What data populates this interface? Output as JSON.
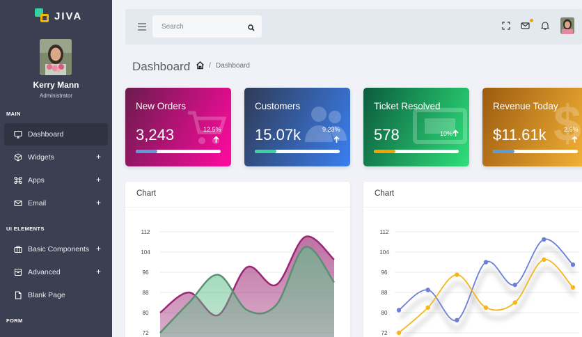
{
  "brand": {
    "name": "JIVA"
  },
  "profile": {
    "name": "Kerry Mann",
    "role": "Administrator"
  },
  "sidebar": {
    "sections": [
      {
        "title": "MAIN"
      },
      {
        "title": "UI ELEMENTS"
      },
      {
        "title": "FORM"
      }
    ],
    "items": [
      {
        "label": "Dashboard",
        "icon": "monitor-icon",
        "active": true
      },
      {
        "label": "Widgets",
        "icon": "cube-icon",
        "expandable": true
      },
      {
        "label": "Apps",
        "icon": "command-icon",
        "expandable": true
      },
      {
        "label": "Email",
        "icon": "mail-icon",
        "expandable": true
      },
      {
        "label": "Basic Components",
        "icon": "briefcase-icon",
        "expandable": true
      },
      {
        "label": "Advanced",
        "icon": "archive-icon",
        "expandable": true
      },
      {
        "label": "Blank Page",
        "icon": "file-icon"
      }
    ],
    "expand_symbol": "+"
  },
  "topbar": {
    "search_placeholder": "Search",
    "icons": [
      "menu-icon",
      "search-icon",
      "fullscreen-icon",
      "mail-icon",
      "bell-icon",
      "user-avatar"
    ]
  },
  "breadcrumb": {
    "title": "Dashboard",
    "separator": "/",
    "current": "Dashboard"
  },
  "cards": [
    {
      "title": "New Orders",
      "value": "3,243",
      "change": "12.5%",
      "progress": 0.25,
      "bar_color": "#5b9bd9",
      "gradient": [
        "#6b1b4d",
        "#ff0aa0"
      ]
    },
    {
      "title": "Customers",
      "value": "15.07k",
      "change": "9.23%",
      "progress": 0.25,
      "bar_color": "#3ad1a3",
      "gradient": [
        "#2f3b57",
        "#3b7ff0"
      ]
    },
    {
      "title": "Ticket Resolved",
      "value": "578",
      "change": "10%",
      "progress": 0.25,
      "bar_color": "#f4a200",
      "gradient": [
        "#0b5b3e",
        "#2fe07a"
      ]
    },
    {
      "title": "Revenue Today",
      "value": "$11.61k",
      "change": "2.5%",
      "progress": 0.25,
      "bar_color": "#5b9bd9",
      "gradient": [
        "#9c5b10",
        "#f6b436"
      ]
    }
  ],
  "charts": [
    {
      "title": "Chart"
    },
    {
      "title": "Chart"
    }
  ],
  "chart_data": [
    {
      "type": "area",
      "title": "Chart",
      "y_ticks": [
        "112",
        "104",
        "96",
        "88",
        "80",
        "72"
      ],
      "ylim": [
        72,
        112
      ],
      "x": [
        0,
        1,
        2,
        3,
        4,
        5,
        6
      ],
      "series": [
        {
          "values": [
            80,
            88,
            79,
            98,
            91,
            110,
            101
          ],
          "color": "#9b2673"
        },
        {
          "values": [
            72,
            84,
            95,
            81,
            83,
            106,
            92
          ],
          "color": "#5b8f72",
          "fill": "#5fbf8a"
        }
      ]
    },
    {
      "type": "line",
      "title": "Chart",
      "y_ticks": [
        "112",
        "104",
        "96",
        "88",
        "80",
        "72"
      ],
      "ylim": [
        70,
        112
      ],
      "x": [
        0,
        1,
        2,
        3,
        4,
        5,
        6
      ],
      "series": [
        {
          "values": [
            81,
            89,
            77,
            100,
            91,
            109,
            99
          ],
          "color": "#6b7fd8"
        },
        {
          "values": [
            72,
            82,
            95,
            82,
            84,
            101,
            90
          ],
          "color": "#f4b61c"
        }
      ]
    }
  ]
}
